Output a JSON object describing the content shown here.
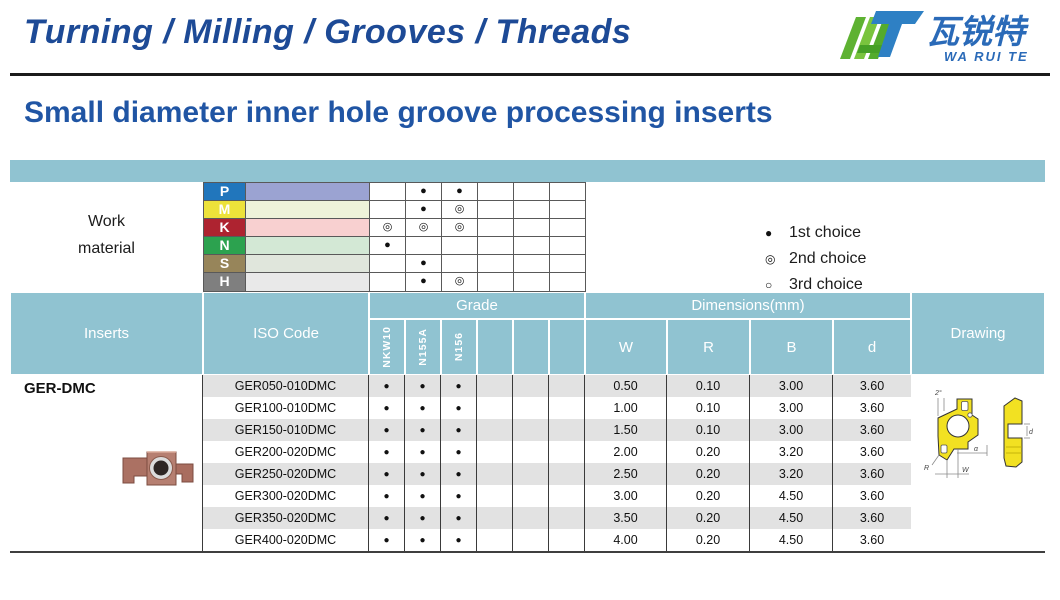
{
  "header": {
    "nav_title": "Turning / Milling / Grooves / Threads",
    "brand": {
      "cn": "瓦锐特",
      "en": "WA RUI TE"
    }
  },
  "page_title": "Small diameter inner hole groove processing inserts",
  "colors": {
    "teal_header": "#90c3d1",
    "title_blue": "#2055a4",
    "nav_blue": "#1d4a96",
    "row_alt_gray": "#e2e2e2",
    "insert_copper": "#b17a6c",
    "drawing_yellow": "#f2e122"
  },
  "work_material": {
    "label_line1": "Work",
    "label_line2": "material",
    "rows": [
      {
        "code": "P",
        "label_color": "#2176bc",
        "band_color": "#9ba3d2",
        "marks": [
          "",
          "●",
          "●",
          "",
          "",
          ""
        ]
      },
      {
        "code": "M",
        "label_color": "#ede23a",
        "band_color": "#eef3d9",
        "marks": [
          "",
          "●",
          "◎",
          "",
          "",
          ""
        ]
      },
      {
        "code": "K",
        "label_color": "#ae2330",
        "band_color": "#f8d0d0",
        "marks": [
          "◎",
          "◎",
          "◎",
          "",
          "",
          ""
        ]
      },
      {
        "code": "N",
        "label_color": "#2ca24f",
        "band_color": "#d3e8d5",
        "marks": [
          "●",
          "",
          "",
          "",
          "",
          ""
        ]
      },
      {
        "code": "S",
        "label_color": "#97855a",
        "band_color": "#e0e6dc",
        "marks": [
          "",
          "●",
          "",
          "",
          "",
          ""
        ]
      },
      {
        "code": "H",
        "label_color": "#7f7f7f",
        "band_color": "#e9e9e9",
        "marks": [
          "",
          "●",
          "◎",
          "",
          "",
          ""
        ]
      }
    ]
  },
  "legend": [
    {
      "symbol": "●",
      "label": "1st choice"
    },
    {
      "symbol": "◎",
      "label": "2nd choice"
    },
    {
      "symbol": "○",
      "label": "3rd choice"
    }
  ],
  "table": {
    "headers": {
      "inserts": "Inserts",
      "iso": "ISO Code",
      "grade": "Grade",
      "dimensions": "Dimensions(mm)",
      "drawing": "Drawing",
      "grade_cols": [
        "NKW10",
        "N155A",
        "N156",
        "",
        "",
        ""
      ],
      "dim_cols": [
        "W",
        "R",
        "B",
        "d"
      ]
    },
    "series_name": "GER-DMC",
    "rows": [
      {
        "iso": "GER050-010DMC",
        "marks": [
          "●",
          "●",
          "●",
          "",
          "",
          ""
        ],
        "w": "0.50",
        "r": "0.10",
        "b": "3.00",
        "d": "3.60"
      },
      {
        "iso": "GER100-010DMC",
        "marks": [
          "●",
          "●",
          "●",
          "",
          "",
          ""
        ],
        "w": "1.00",
        "r": "0.10",
        "b": "3.00",
        "d": "3.60"
      },
      {
        "iso": "GER150-010DMC",
        "marks": [
          "●",
          "●",
          "●",
          "",
          "",
          ""
        ],
        "w": "1.50",
        "r": "0.10",
        "b": "3.00",
        "d": "3.60"
      },
      {
        "iso": "GER200-020DMC",
        "marks": [
          "●",
          "●",
          "●",
          "",
          "",
          ""
        ],
        "w": "2.00",
        "r": "0.20",
        "b": "3.20",
        "d": "3.60"
      },
      {
        "iso": "GER250-020DMC",
        "marks": [
          "●",
          "●",
          "●",
          "",
          "",
          ""
        ],
        "w": "2.50",
        "r": "0.20",
        "b": "3.20",
        "d": "3.60"
      },
      {
        "iso": "GER300-020DMC",
        "marks": [
          "●",
          "●",
          "●",
          "",
          "",
          ""
        ],
        "w": "3.00",
        "r": "0.20",
        "b": "4.50",
        "d": "3.60"
      },
      {
        "iso": "GER350-020DMC",
        "marks": [
          "●",
          "●",
          "●",
          "",
          "",
          ""
        ],
        "w": "3.50",
        "r": "0.20",
        "b": "4.50",
        "d": "3.60"
      },
      {
        "iso": "GER400-020DMC",
        "marks": [
          "●",
          "●",
          "●",
          "",
          "",
          ""
        ],
        "w": "4.00",
        "r": "0.20",
        "b": "4.50",
        "d": "3.60"
      }
    ]
  },
  "drawing_labels": {
    "angle": "2°",
    "alpha": "α",
    "radius": "R",
    "width": "W",
    "depth": "d"
  }
}
